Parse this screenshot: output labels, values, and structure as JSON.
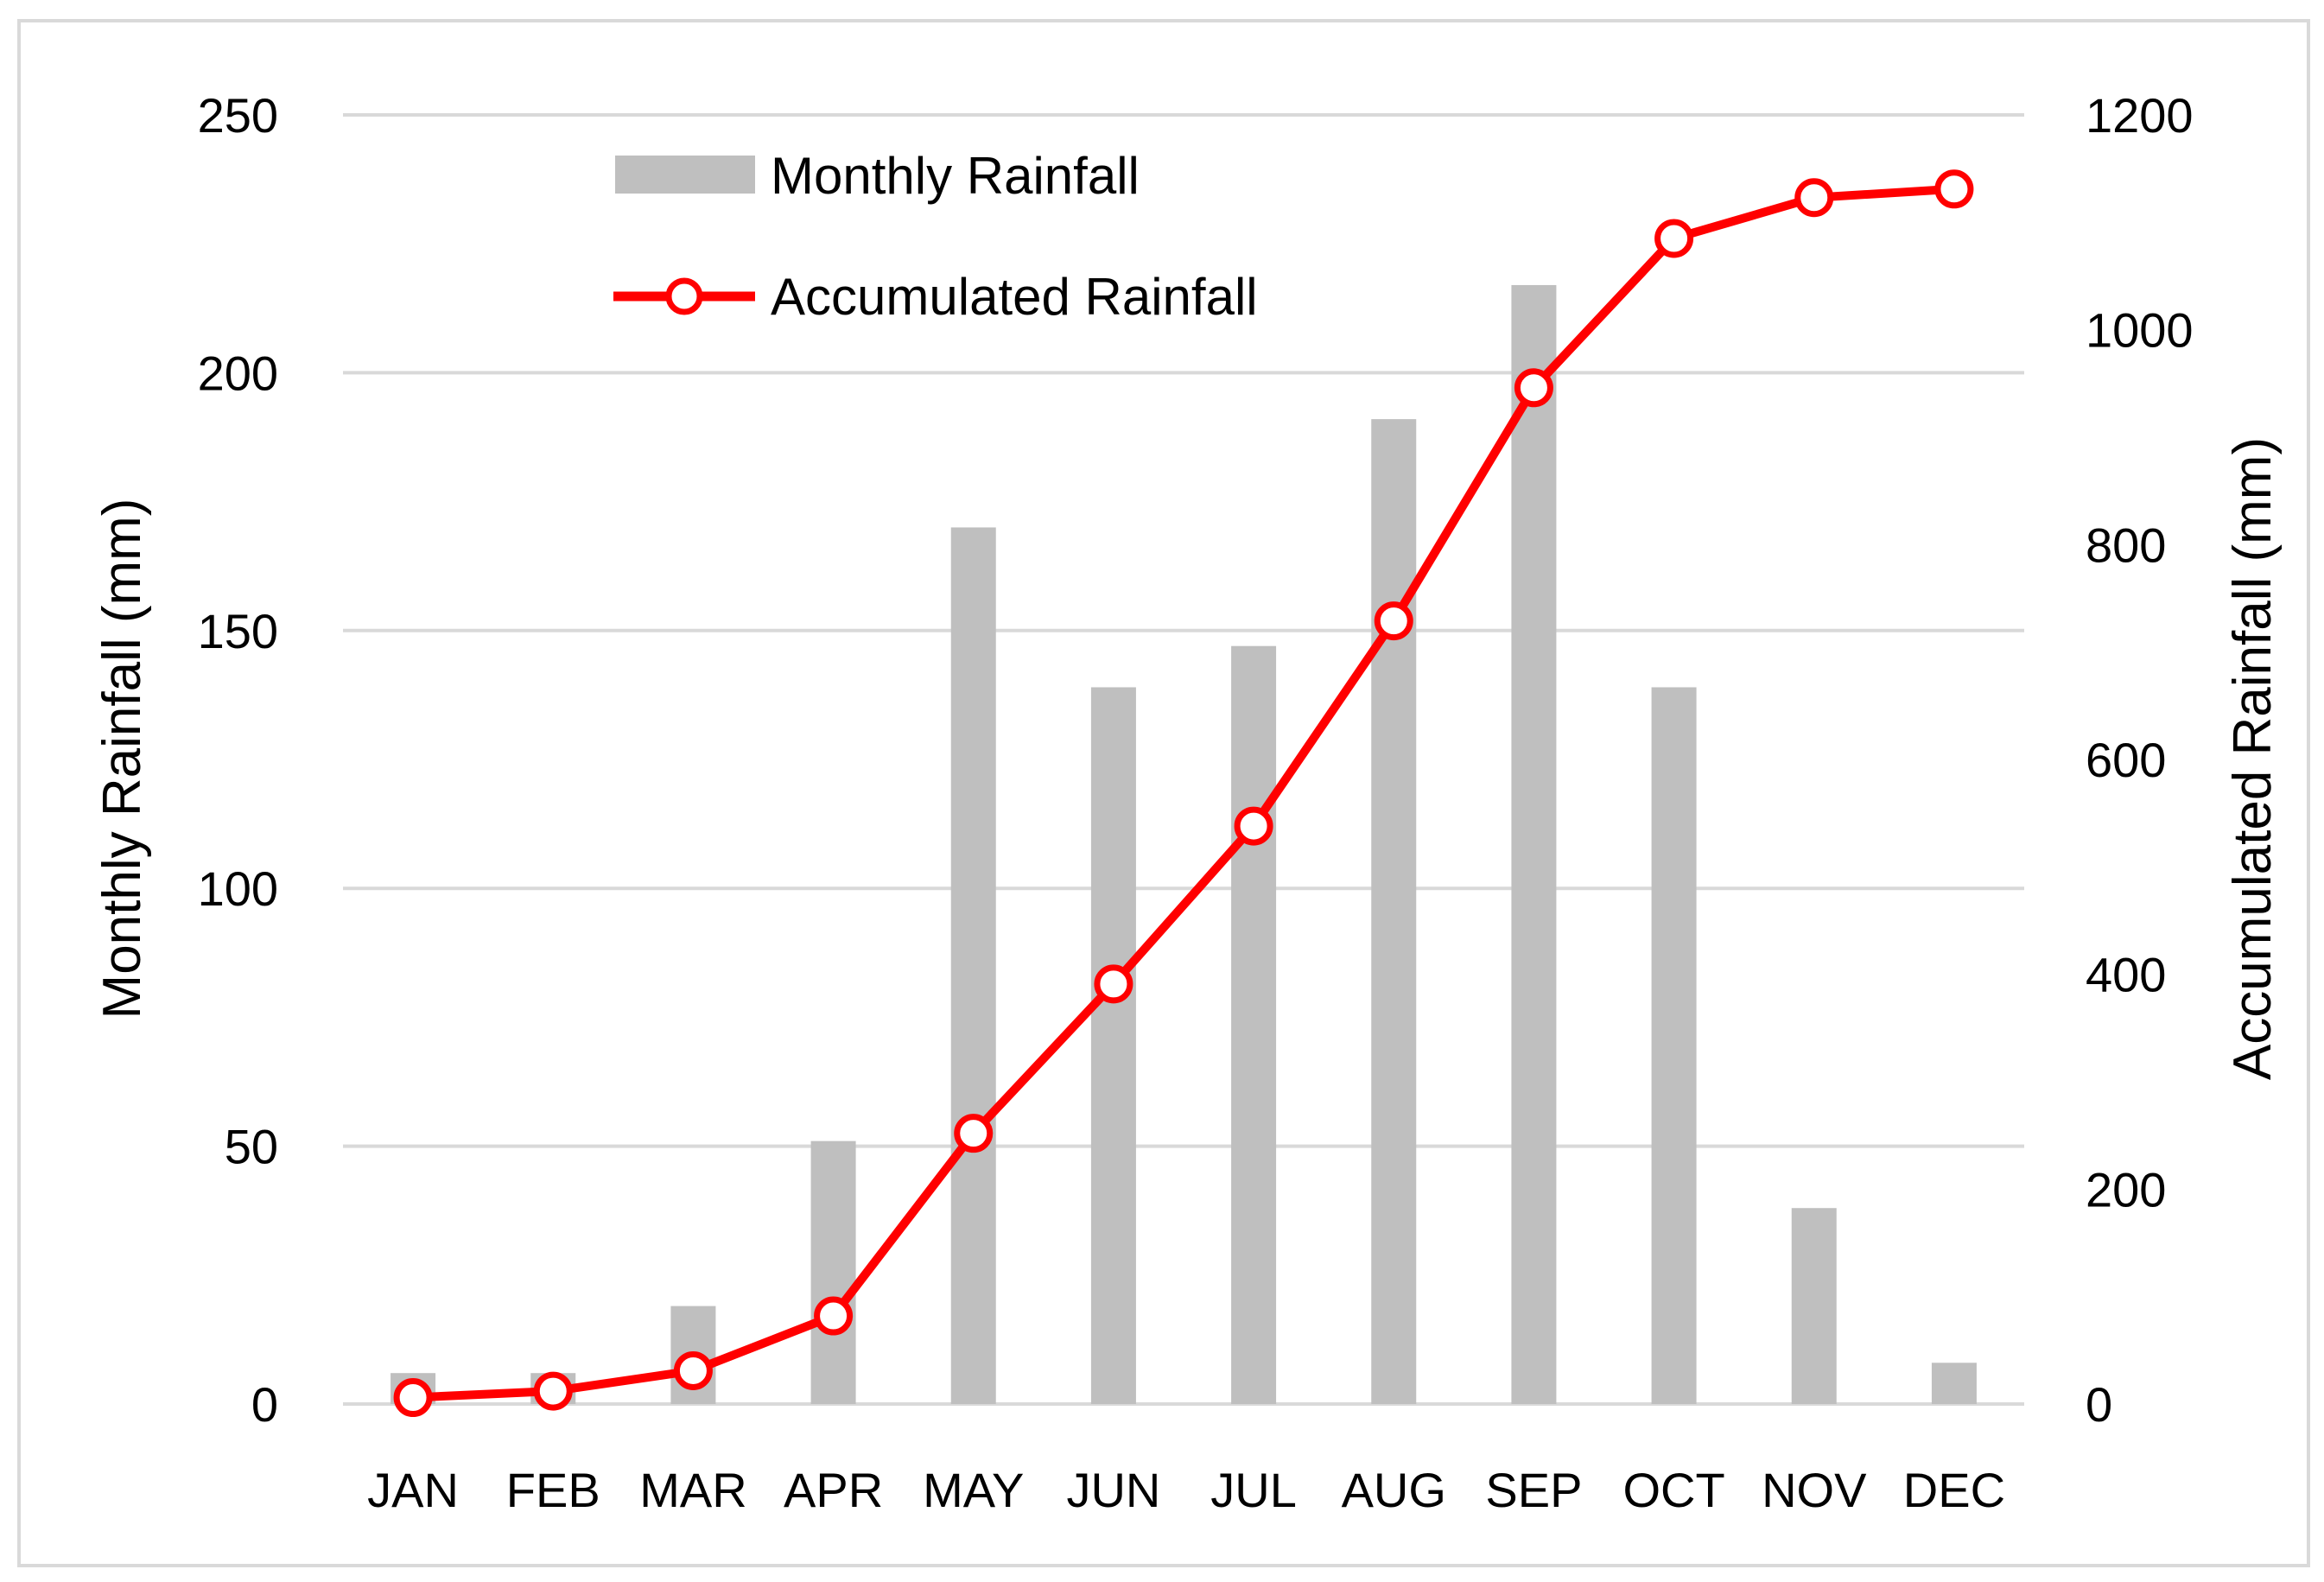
{
  "chart_data": {
    "type": "bar",
    "categories": [
      "JAN",
      "FEB",
      "MAR",
      "APR",
      "MAY",
      "JUN",
      "JUL",
      "AUG",
      "SEP",
      "OCT",
      "NOV",
      "DEC"
    ],
    "series": [
      {
        "name": "Monthly Rainfall",
        "type": "bar",
        "axis": "left",
        "color": "#bfbfbf",
        "values": [
          6,
          6,
          19,
          51,
          170,
          139,
          147,
          191,
          217,
          139,
          38,
          8
        ]
      },
      {
        "name": "Accumulated Rainfall",
        "type": "line",
        "axis": "right",
        "color": "#ff0000",
        "marker": "open-circle",
        "values": [
          6,
          12,
          31,
          82,
          252,
          391,
          538,
          729,
          946,
          1085,
          1123,
          1131
        ]
      }
    ],
    "ylabel": "Monthly Rainfall (mm)",
    "y2label": "Accumulated Rainfall (mm)",
    "ylim": [
      0,
      250
    ],
    "y2lim": [
      0,
      1200
    ],
    "yticks": [
      "0",
      "50",
      "100",
      "150",
      "200",
      "250"
    ],
    "y2ticks": [
      "0",
      "200",
      "400",
      "600",
      "800",
      "1000",
      "1200"
    ],
    "grid": true,
    "legend_position": "top-left",
    "legend": [
      "Monthly Rainfall",
      "Accumulated Rainfall"
    ]
  }
}
